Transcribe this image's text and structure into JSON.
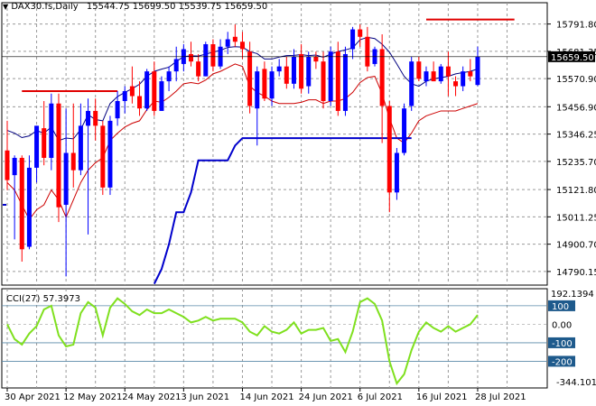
{
  "header": {
    "symbol": "DAX30.fs,Daily",
    "ohlc": "15544.75 15699.50 15539.75 15659.50"
  },
  "indicator": {
    "label": "CCI(27) 57.3973",
    "levels": [
      "100",
      "0.00",
      "-100",
      "-200"
    ],
    "top_value": "192.1394",
    "bottom_value": "-344.1015"
  },
  "colors": {
    "bull": "#0000ff",
    "bear": "#ff0000",
    "ma_blue": "#000080",
    "ma_red": "#cc0000",
    "stop": "#0000cc",
    "resist": "#e00000",
    "cci": "#7fe01e",
    "current_tag": "#000000"
  },
  "chart_data": {
    "type": "candlestick",
    "title": "DAX30.fs,Daily",
    "price_ticks": [
      15791.8,
      15681.35,
      15570.9,
      15456.9,
      15346.25,
      15235.7,
      15121.8,
      15011.25,
      14900.7,
      14790.15
    ],
    "ylim": [
      14735,
      15878
    ],
    "current_price": 15659.5,
    "x_tick_labels": [
      {
        "label": "30 Apr 2021",
        "i": 0
      },
      {
        "label": "12 May 2021",
        "i": 8
      },
      {
        "label": "24 May 2021",
        "i": 16
      },
      {
        "label": "3 Jun 2021",
        "i": 24
      },
      {
        "label": "14 Jun 2021",
        "i": 32
      },
      {
        "label": "24 Jun 2021",
        "i": 40
      },
      {
        "label": "6 Jul 2021",
        "i": 48
      },
      {
        "label": "16 Jul 2021",
        "i": 56
      },
      {
        "label": "28 Jul 2021",
        "i": 64
      }
    ],
    "candles": [
      [
        15280,
        15400,
        15120,
        15160
      ],
      [
        15180,
        15260,
        14920,
        15250
      ],
      [
        15250,
        15260,
        14830,
        14880
      ],
      [
        14890,
        15260,
        14880,
        15210
      ],
      [
        15210,
        15380,
        15150,
        15380
      ],
      [
        15370,
        15480,
        15220,
        15250
      ],
      [
        15250,
        15510,
        15200,
        15470
      ],
      [
        15470,
        15510,
        14990,
        15050
      ],
      [
        15060,
        15450,
        14770,
        15270
      ],
      [
        15270,
        15470,
        15130,
        15200
      ],
      [
        15200,
        15470,
        15180,
        15380
      ],
      [
        15380,
        15490,
        14940,
        15440
      ],
      [
        15440,
        15490,
        15320,
        15380
      ],
      [
        15380,
        15400,
        15100,
        15130
      ],
      [
        15130,
        15420,
        15100,
        15400
      ],
      [
        15410,
        15520,
        15380,
        15480
      ],
      [
        15480,
        15540,
        15430,
        15520
      ],
      [
        15540,
        15620,
        15470,
        15500
      ],
      [
        15500,
        15560,
        15420,
        15450
      ],
      [
        15450,
        15610,
        15440,
        15600
      ],
      [
        15600,
        15640,
        15420,
        15440
      ],
      [
        15440,
        15580,
        15440,
        15560
      ],
      [
        15560,
        15620,
        15520,
        15600
      ],
      [
        15600,
        15700,
        15560,
        15650
      ],
      [
        15630,
        15710,
        15600,
        15690
      ],
      [
        15670,
        15720,
        15620,
        15640
      ],
      [
        15640,
        15670,
        15560,
        15580
      ],
      [
        15580,
        15720,
        15580,
        15710
      ],
      [
        15710,
        15730,
        15600,
        15620
      ],
      [
        15620,
        15730,
        15610,
        15700
      ],
      [
        15700,
        15760,
        15670,
        15730
      ],
      [
        15740,
        15790,
        15700,
        15720
      ],
      [
        15720,
        15760,
        15650,
        15690
      ],
      [
        15680,
        15720,
        15430,
        15460
      ],
      [
        15450,
        15620,
        15300,
        15600
      ],
      [
        15610,
        15640,
        15480,
        15490
      ],
      [
        15490,
        15620,
        15460,
        15600
      ],
      [
        15600,
        15650,
        15580,
        15620
      ],
      [
        15620,
        15660,
        15530,
        15550
      ],
      [
        15550,
        15690,
        15530,
        15660
      ],
      [
        15670,
        15710,
        15510,
        15530
      ],
      [
        15540,
        15680,
        15510,
        15660
      ],
      [
        15660,
        15680,
        15610,
        15640
      ],
      [
        15640,
        15680,
        15450,
        15480
      ],
      [
        15480,
        15700,
        15460,
        15680
      ],
      [
        15680,
        15720,
        15420,
        15440
      ],
      [
        15440,
        15700,
        15420,
        15670
      ],
      [
        15690,
        15780,
        15650,
        15770
      ],
      [
        15770,
        15790,
        15700,
        15740
      ],
      [
        15740,
        15780,
        15600,
        15620
      ],
      [
        15630,
        15700,
        15620,
        15690
      ],
      [
        15690,
        15750,
        15310,
        15460
      ],
      [
        15460,
        15480,
        15030,
        15110
      ],
      [
        15110,
        15290,
        15080,
        15270
      ],
      [
        15270,
        15470,
        15260,
        15450
      ],
      [
        15460,
        15660,
        15440,
        15640
      ],
      [
        15640,
        15660,
        15560,
        15570
      ],
      [
        15560,
        15620,
        15540,
        15600
      ],
      [
        15600,
        15640,
        15560,
        15560
      ],
      [
        15560,
        15630,
        15550,
        15620
      ],
      [
        15620,
        15680,
        15500,
        15580
      ],
      [
        15560,
        15580,
        15500,
        15540
      ],
      [
        15540,
        15620,
        15520,
        15600
      ],
      [
        15600,
        15650,
        15560,
        15580
      ],
      [
        15545,
        15700,
        15540,
        15660
      ]
    ],
    "ma_blue": [
      15361,
      15350,
      15332,
      15339,
      15360,
      15350,
      15375,
      15320,
      15330,
      15327,
      15365,
      15425,
      15405,
      15400,
      15470,
      15498,
      15515,
      15530,
      15548,
      15580,
      15600,
      15609,
      15617,
      15640,
      15660,
      15663,
      15662,
      15670,
      15678,
      15685,
      15697,
      15700,
      15698,
      15680,
      15672,
      15650,
      15650,
      15658,
      15664,
      15665,
      15668,
      15664,
      15666,
      15657,
      15670,
      15680,
      15687,
      15695,
      15728,
      15738,
      15733,
      15710,
      15678,
      15630,
      15580,
      15550,
      15540,
      15560,
      15570,
      15575,
      15580,
      15590,
      15595,
      15600,
      15610
    ],
    "ma_red": [
      15150,
      15120,
      15060,
      15000,
      15040,
      15060,
      15120,
      15080,
      15010,
      15080,
      15150,
      15200,
      15230,
      15250,
      15320,
      15350,
      15375,
      15390,
      15400,
      15445,
      15480,
      15475,
      15495,
      15520,
      15550,
      15555,
      15550,
      15565,
      15590,
      15600,
      15615,
      15630,
      15620,
      15540,
      15515,
      15500,
      15480,
      15470,
      15470,
      15470,
      15475,
      15485,
      15485,
      15470,
      15480,
      15480,
      15490,
      15515,
      15555,
      15575,
      15580,
      15510,
      15410,
      15330,
      15310,
      15350,
      15400,
      15420,
      15430,
      15440,
      15440,
      15440,
      15450,
      15460,
      15470
    ],
    "stop_line": [
      [
        20,
        14740
      ],
      [
        21,
        14800
      ],
      [
        22,
        14900
      ],
      [
        23,
        15030
      ],
      [
        24,
        15030
      ],
      [
        25,
        15110
      ],
      [
        26,
        15240
      ],
      [
        30,
        15240
      ],
      [
        31,
        15300
      ],
      [
        32,
        15330
      ],
      [
        55,
        15330
      ]
    ],
    "stop_line_left": [
      [
        0,
        15060
      ],
      [
        0.5,
        15060
      ]
    ],
    "resistance_lines": [
      {
        "from": 2,
        "to": 15,
        "value": 15520
      },
      {
        "from": 57,
        "to": 69,
        "value": 15810
      }
    ],
    "cci_ylim": [
      -344.1015,
      192.1394
    ],
    "cci": [
      0,
      -80,
      -110,
      -50,
      -10,
      80,
      100,
      -60,
      -120,
      -110,
      60,
      120,
      90,
      -60,
      90,
      140,
      110,
      70,
      50,
      80,
      60,
      60,
      80,
      60,
      40,
      10,
      20,
      40,
      20,
      30,
      30,
      30,
      10,
      -40,
      -60,
      -10,
      -40,
      -50,
      -30,
      10,
      -50,
      -30,
      -30,
      -20,
      -90,
      -80,
      -150,
      -40,
      120,
      140,
      110,
      20,
      -200,
      -320,
      -270,
      -140,
      -40,
      10,
      -20,
      -40,
      -10,
      -40,
      -20,
      0,
      50
    ]
  }
}
